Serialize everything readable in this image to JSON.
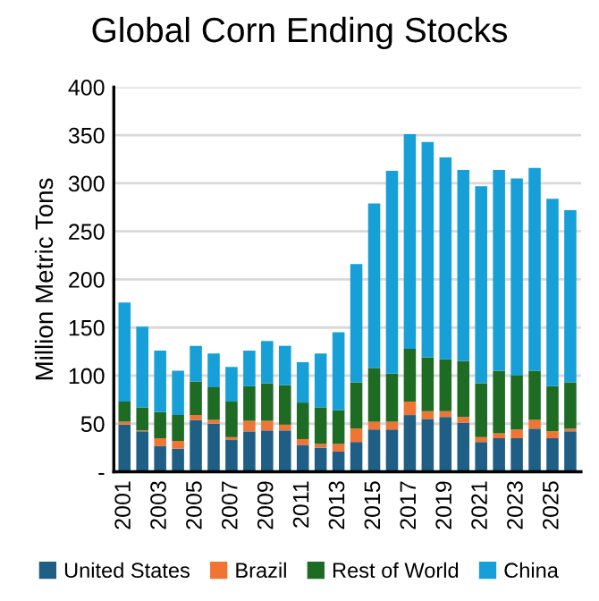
{
  "chart_data": {
    "type": "bar",
    "title": "Global Corn Ending Stocks",
    "ylabel": "Million Metric Tons",
    "stacked": true,
    "categories": [
      "2001",
      null,
      "2003",
      null,
      "2005",
      null,
      "2007",
      null,
      "2009",
      null,
      "2011",
      null,
      "2013",
      null,
      "2015",
      null,
      "2017",
      null,
      "2019",
      null,
      "2021",
      null,
      "2023",
      null,
      "2025",
      null
    ],
    "series": [
      {
        "name": "United States",
        "color": "#1f5f86",
        "values": [
          49,
          42,
          27,
          24,
          54,
          50,
          33,
          42,
          43,
          43,
          28,
          25,
          21,
          31,
          44,
          44,
          59,
          55,
          57,
          51,
          31,
          35,
          35,
          45,
          35,
          42
        ]
      },
      {
        "name": "Brazil",
        "color": "#f07434",
        "values": [
          3,
          1,
          8,
          8,
          5,
          4,
          3,
          11,
          10,
          6,
          6,
          4,
          8,
          14,
          8,
          8,
          14,
          8,
          6,
          6,
          5,
          5,
          9,
          9,
          7,
          3
        ]
      },
      {
        "name": "Rest of World",
        "color": "#1e6b24",
        "values": [
          21,
          24,
          27,
          27,
          35,
          34,
          37,
          36,
          39,
          41,
          38,
          38,
          35,
          48,
          56,
          50,
          55,
          56,
          54,
          58,
          56,
          65,
          56,
          51,
          47,
          48
        ]
      },
      {
        "name": "China",
        "color": "#17a0d8",
        "values": [
          103,
          84,
          64,
          46,
          37,
          35,
          36,
          37,
          44,
          41,
          42,
          56,
          81,
          123,
          171,
          211,
          223,
          224,
          210,
          199,
          205,
          209,
          205,
          211,
          195,
          179
        ]
      }
    ],
    "ylim": [
      0,
      400
    ],
    "yticks": [
      {
        "value": 0,
        "label": "-"
      },
      50,
      100,
      150,
      200,
      250,
      300,
      350,
      400
    ],
    "grid": "y",
    "legend": "bottom"
  }
}
